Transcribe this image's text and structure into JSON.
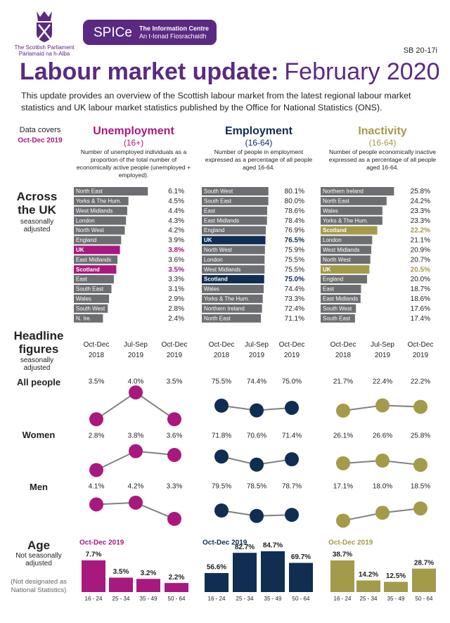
{
  "header": {
    "parliament": "The Scottish Parliament",
    "parliament_gaelic": "Pàrlamaid na h-Alba",
    "spice": "SPICe",
    "centre": "The Information Centre",
    "centre_gaelic": "An t-Ionad Fiosrachaidh",
    "reference": "SB 20-17i",
    "title": "Labour market update:",
    "title_date": "February 2020",
    "intro": "This update provides an overview of the Scottish labour market from the latest regional labour market statistics and UK labour market statistics published by the Office for National Statistics (ONS).",
    "data_covers": "Data covers",
    "period": "Oct-Dec 2019"
  },
  "sections": {
    "uk": {
      "title": "Across the UK",
      "subtitle": "seasonally adjusted"
    },
    "headline": {
      "title": "Headline figures",
      "subtitle": "seasonally adjusted",
      "rows": [
        "All people",
        "Women",
        "Men"
      ]
    },
    "age": {
      "title": "Age",
      "subtitle": "Not seasonally adjusted",
      "note": "(Not designated as National Statistics)"
    }
  },
  "chart_data": [
    {
      "type": "hbar",
      "title": "Unemployment",
      "subtitle": "(16+)",
      "description": "Number of unemployed individuals as a proportion of the total number of economically active people (unemployed + employed).",
      "title_color": "#a8197f",
      "color": "#6d6e71",
      "categories": [
        "North East",
        "Yorks & The Hum.",
        "West Midlands",
        "London",
        "North West",
        "England",
        "UK",
        "East Midlands",
        "Scotland",
        "East",
        "South East",
        "Wales",
        "South West",
        "N. Ire."
      ],
      "values": [
        6.1,
        4.5,
        4.4,
        4.3,
        4.2,
        3.9,
        3.8,
        3.6,
        3.5,
        3.3,
        3.1,
        2.9,
        2.8,
        2.4
      ],
      "value_labels": [
        "6.1%",
        "4.5%",
        "4.4%",
        "4.3%",
        "4.2%",
        "3.9%",
        "3.8%",
        "3.6%",
        "3.5%",
        "3.3%",
        "3.1%",
        "2.9%",
        "2.8%",
        "2.4%"
      ],
      "colors": [
        "#6d6e71",
        "#6d6e71",
        "#6d6e71",
        "#6d6e71",
        "#6d6e71",
        "#6d6e71",
        "#a8197f",
        "#6d6e71",
        "#a8197f",
        "#6d6e71",
        "#6d6e71",
        "#6d6e71",
        "#6d6e71",
        "#6d6e71"
      ],
      "xlim": [
        0,
        6.2
      ]
    },
    {
      "type": "hbar",
      "title": "Employment",
      "subtitle": "(16-64)",
      "description": "Number of people in employment expressed as a percentage of all people aged 16-64.",
      "title_color": "#0f2e52",
      "color": "#6d6e71",
      "categories": [
        "South West",
        "South East",
        "East",
        "East Midlands",
        "England",
        "UK",
        "North West",
        "London",
        "West Midlands",
        "Scotland",
        "Wales",
        "Yorks & The Hum.",
        "Northern Ireland",
        "North East"
      ],
      "values": [
        80.1,
        80.0,
        78.6,
        78.4,
        76.9,
        76.5,
        75.9,
        75.5,
        75.5,
        75.0,
        74.4,
        73.3,
        72.4,
        71.1
      ],
      "value_labels": [
        "80.1%",
        "80.0%",
        "78.6%",
        "78.4%",
        "76.9%",
        "76.5%",
        "75.9%",
        "75.5%",
        "75.5%",
        "75.0%",
        "74.4%",
        "73.3%",
        "72.4%",
        "71.1%"
      ],
      "colors": [
        "#6d6e71",
        "#6d6e71",
        "#6d6e71",
        "#6d6e71",
        "#6d6e71",
        "#0f2e52",
        "#6d6e71",
        "#6d6e71",
        "#6d6e71",
        "#0f2e52",
        "#6d6e71",
        "#6d6e71",
        "#6d6e71",
        "#6d6e71"
      ],
      "xlim": [
        0,
        82
      ]
    },
    {
      "type": "hbar",
      "title": "Inactivity",
      "subtitle": "(16-64)",
      "description": "Number of people economically inactive expressed as a percentage of all people aged 16-64.",
      "title_color": "#a39b4a",
      "color": "#6d6e71",
      "categories": [
        "Northern Ireland",
        "North East",
        "Wales",
        "Yorks & The Hum.",
        "Scotland",
        "London",
        "West Midlands",
        "North West",
        "UK",
        "England",
        "East",
        "East Midlands",
        "South West",
        "South East"
      ],
      "values": [
        25.8,
        24.2,
        23.3,
        23.3,
        22.2,
        21.1,
        20.9,
        20.7,
        20.5,
        20.0,
        18.7,
        18.6,
        17.6,
        17.4
      ],
      "value_labels": [
        "25.8%",
        "24.2%",
        "23.3%",
        "23.3%",
        "22.2%",
        "21.1%",
        "20.9%",
        "20.7%",
        "20.5%",
        "20.0%",
        "18.7%",
        "18.6%",
        "17.6%",
        "17.4%"
      ],
      "colors": [
        "#6d6e71",
        "#6d6e71",
        "#6d6e71",
        "#6d6e71",
        "#a39b4a",
        "#6d6e71",
        "#6d6e71",
        "#6d6e71",
        "#a39b4a",
        "#6d6e71",
        "#6d6e71",
        "#6d6e71",
        "#6d6e71",
        "#6d6e71"
      ],
      "xlim": [
        10,
        26.5
      ]
    },
    {
      "type": "line",
      "x": [
        "Oct-Dec 2018",
        "Jul-Sep 2019",
        "Oct-Dec 2019"
      ],
      "line_color": "#808080",
      "series": [
        {
          "color": "#a8197f",
          "values": [
            3.5,
            4.0,
            3.5
          ],
          "value_labels": [
            "3.5%",
            "4.0%",
            "3.5%"
          ],
          "ylim": [
            3.45,
            4.08
          ]
        },
        {
          "color": "#a8197f",
          "values": [
            2.8,
            3.8,
            3.6
          ],
          "value_labels": [
            "2.8%",
            "3.8%",
            "3.6%"
          ],
          "ylim": [
            2.37,
            4.16
          ]
        },
        {
          "color": "#a8197f",
          "values": [
            4.1,
            4.2,
            3.3
          ],
          "value_labels": [
            "4.1%",
            "4.2%",
            "3.3%"
          ],
          "ylim": [
            2.83,
            4.7
          ]
        }
      ]
    },
    {
      "type": "line",
      "x": [
        "Oct-Dec 2018",
        "Jul-Sep 2019",
        "Oct-Dec 2019"
      ],
      "line_color": "#808080",
      "series": [
        {
          "color": "#0f2e52",
          "values": [
            75.5,
            74.4,
            75.0
          ],
          "value_labels": [
            "75.5%",
            "74.4%",
            "75.0%"
          ],
          "ylim": [
            71.7,
            79.6
          ]
        },
        {
          "color": "#0f2e52",
          "values": [
            71.8,
            70.6,
            71.4
          ],
          "value_labels": [
            "71.8%",
            "70.6%",
            "71.4%"
          ],
          "ylim": [
            68.6,
            73.6
          ]
        },
        {
          "color": "#0f2e52",
          "values": [
            79.5,
            78.5,
            78.7
          ],
          "value_labels": [
            "79.5%",
            "78.5%",
            "78.7%"
          ],
          "ylim": [
            76.4,
            82.6
          ]
        }
      ]
    },
    {
      "type": "line",
      "x": [
        "Oct-Dec 2018",
        "Jul-Sep 2019",
        "Oct-Dec 2019"
      ],
      "line_color": "#808080",
      "series": [
        {
          "color": "#a39b4a",
          "values": [
            21.7,
            22.4,
            22.2
          ],
          "value_labels": [
            "21.7%",
            "22.4%",
            "22.2%"
          ],
          "ylim": [
            20.2,
            24.7
          ]
        },
        {
          "color": "#a39b4a",
          "values": [
            26.1,
            26.6,
            25.8
          ],
          "value_labels": [
            "26.1%",
            "26.6%",
            "25.8%"
          ],
          "ylim": [
            23.35,
            29.6
          ]
        },
        {
          "color": "#a39b4a",
          "values": [
            17.1,
            18.0,
            18.5
          ],
          "value_labels": [
            "17.1%",
            "18.0%",
            "18.5%"
          ],
          "ylim": [
            16.33,
            20.2
          ]
        }
      ]
    },
    {
      "type": "column",
      "title": "Oct-Dec 2019",
      "color": "#a8197f",
      "categories": [
        "16 - 24",
        "25 - 34",
        "35 - 49",
        "50 - 64"
      ],
      "values": [
        7.7,
        3.5,
        3.2,
        2.2
      ],
      "value_labels": [
        "7.7%",
        "3.5%",
        "3.2%",
        "2.2%"
      ],
      "ylim": [
        0,
        9.9
      ]
    },
    {
      "type": "column",
      "title": "Oct-Dec 2019",
      "color": "#0f2e52",
      "categories": [
        "16 - 24",
        "25 - 34",
        "35 - 49",
        "50 - 64"
      ],
      "values": [
        56.6,
        82.7,
        84.7,
        69.7
      ],
      "value_labels": [
        "56.6%",
        "82.7%",
        "84.7%",
        "69.7%"
      ],
      "ylim": [
        32,
        84.7
      ]
    },
    {
      "type": "column",
      "title": "Oct-Dec 2019",
      "color": "#a39b4a",
      "categories": [
        "16 - 24",
        "25 - 34",
        "35 - 49",
        "50 - 64"
      ],
      "values": [
        38.7,
        14.2,
        12.5,
        28.7
      ],
      "value_labels": [
        "38.7%",
        "14.2%",
        "12.5%",
        "28.7%"
      ],
      "ylim": [
        0,
        49.9
      ]
    }
  ]
}
